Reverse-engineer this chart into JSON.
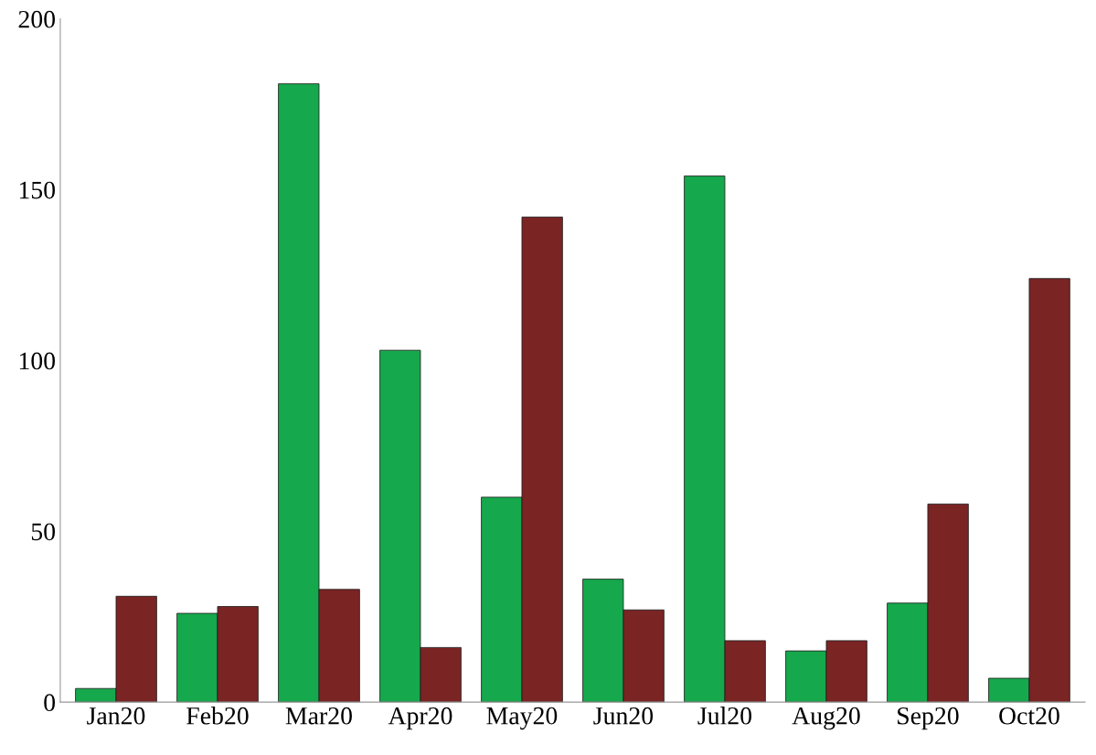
{
  "chart_data": {
    "type": "bar",
    "categories": [
      "Jan20",
      "Feb20",
      "Mar20",
      "Apr20",
      "May20",
      "Jun20",
      "Jul20",
      "Aug20",
      "Sep20",
      "Oct20"
    ],
    "series": [
      {
        "color": "#16a84c",
        "values": [
          4,
          26,
          181,
          103,
          60,
          36,
          154,
          15,
          29,
          7
        ]
      },
      {
        "color": "#7a2424",
        "values": [
          31,
          28,
          33,
          16,
          142,
          27,
          18,
          18,
          58,
          124
        ]
      }
    ],
    "ylim": [
      0,
      200
    ],
    "yticks": [
      0,
      50,
      100,
      150,
      200
    ],
    "grid": false,
    "legend": false
  }
}
